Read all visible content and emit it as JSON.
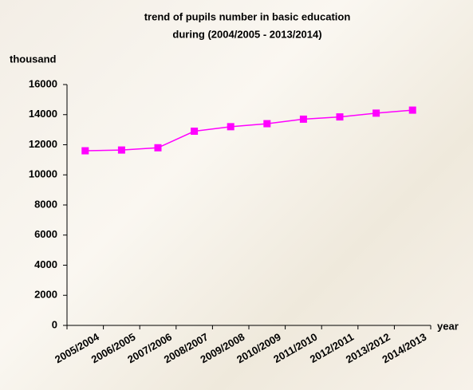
{
  "chart_data": {
    "type": "line",
    "title": [
      "trend of pupils number in basic education",
      "during (2004/2005 - 2013/2014)"
    ],
    "y_label": "thousand",
    "x_label": "year",
    "categories": [
      "2005/2004",
      "2006/2005",
      "2007/2006",
      "2008/2007",
      "2009/2008",
      "2010/2009",
      "2011/2010",
      "2012/2011",
      "2013/2012",
      "2014/2013"
    ],
    "series": [
      {
        "name": "pupils",
        "color": "#ff00ff",
        "values": [
          11600,
          11650,
          11800,
          12900,
          13200,
          13400,
          13700,
          13850,
          14100,
          14300
        ]
      }
    ],
    "ylim": [
      0,
      16000
    ],
    "yticks": [
      0,
      2000,
      4000,
      6000,
      8000,
      10000,
      12000,
      14000,
      16000
    ]
  }
}
